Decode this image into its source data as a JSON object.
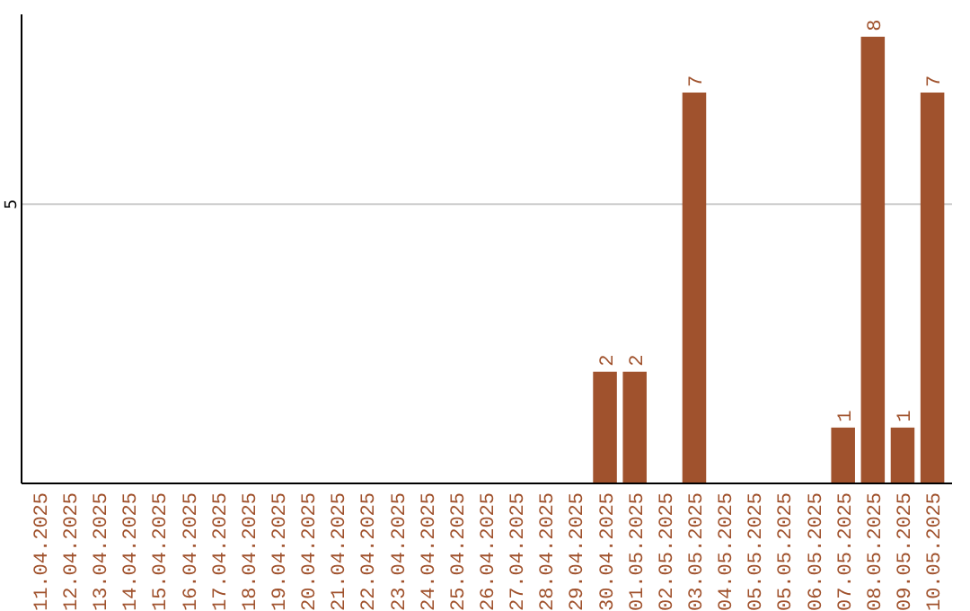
{
  "chart_data": {
    "type": "bar",
    "categories": [
      "11.04.2025",
      "12.04.2025",
      "13.04.2025",
      "14.04.2025",
      "15.04.2025",
      "16.04.2025",
      "17.04.2025",
      "18.04.2025",
      "19.04.2025",
      "20.04.2025",
      "21.04.2025",
      "22.04.2025",
      "23.04.2025",
      "24.04.2025",
      "25.04.2025",
      "26.04.2025",
      "27.04.2025",
      "28.04.2025",
      "29.04.2025",
      "30.04.2025",
      "01.05.2025",
      "02.05.2025",
      "03.05.2025",
      "04.05.2025",
      "05.05.2025",
      "05.05.2025",
      "06.05.2025",
      "07.05.2025",
      "08.05.2025",
      "09.05.2025",
      "10.05.2025"
    ],
    "values": [
      null,
      null,
      null,
      null,
      null,
      null,
      null,
      null,
      null,
      null,
      null,
      null,
      null,
      null,
      null,
      null,
      null,
      null,
      null,
      2,
      2,
      null,
      7,
      null,
      null,
      null,
      null,
      1,
      8,
      1,
      7
    ],
    "data_labels": true,
    "color": "#a0522d",
    "ylim": [
      0,
      8.4
    ],
    "yticks": [
      5
    ],
    "grid": "y"
  }
}
